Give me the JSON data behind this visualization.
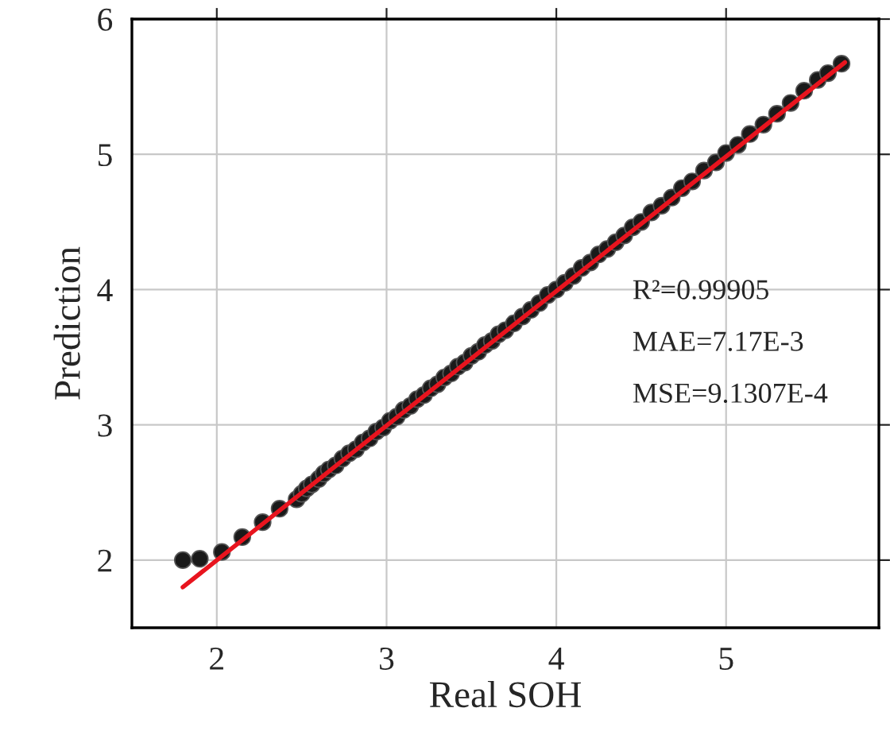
{
  "chart_data": {
    "type": "scatter",
    "xlabel": "Real SOH",
    "ylabel": "Prediction",
    "xlim": [
      1.5,
      5.9
    ],
    "ylim": [
      1.5,
      6
    ],
    "xticks": [
      2,
      3,
      4,
      5
    ],
    "yticks": [
      2,
      3,
      4,
      5,
      6
    ],
    "grid": true,
    "series": [
      {
        "marker": "circle",
        "color": "#1a1a1a",
        "x": [
          1.8,
          1.9,
          2.03,
          2.15,
          2.27,
          2.37,
          2.47,
          2.5,
          2.53,
          2.56,
          2.6,
          2.63,
          2.66,
          2.7,
          2.74,
          2.78,
          2.82,
          2.86,
          2.9,
          2.94,
          2.98,
          3.02,
          3.06,
          3.1,
          3.14,
          3.18,
          3.22,
          3.26,
          3.3,
          3.34,
          3.38,
          3.42,
          3.46,
          3.5,
          3.54,
          3.58,
          3.62,
          3.66,
          3.7,
          3.75,
          3.8,
          3.85,
          3.9,
          3.95,
          4.0,
          4.05,
          4.1,
          4.15,
          4.2,
          4.25,
          4.3,
          4.35,
          4.4,
          4.45,
          4.5,
          4.56,
          4.62,
          4.68,
          4.74,
          4.8,
          4.87,
          4.94,
          5.0,
          5.07,
          5.14,
          5.22,
          5.3,
          5.38,
          5.46,
          5.54,
          5.6,
          5.68
        ],
        "values": [
          2.0,
          2.01,
          2.06,
          2.17,
          2.28,
          2.38,
          2.45,
          2.49,
          2.53,
          2.56,
          2.6,
          2.64,
          2.67,
          2.7,
          2.75,
          2.79,
          2.82,
          2.87,
          2.9,
          2.95,
          2.98,
          3.03,
          3.06,
          3.11,
          3.14,
          3.19,
          3.22,
          3.27,
          3.3,
          3.35,
          3.38,
          3.43,
          3.46,
          3.51,
          3.54,
          3.59,
          3.62,
          3.67,
          3.7,
          3.75,
          3.8,
          3.85,
          3.9,
          3.96,
          4.0,
          4.05,
          4.1,
          4.16,
          4.2,
          4.26,
          4.3,
          4.35,
          4.4,
          4.46,
          4.5,
          4.57,
          4.62,
          4.68,
          4.75,
          4.8,
          4.88,
          4.94,
          5.01,
          5.07,
          5.15,
          5.22,
          5.3,
          5.38,
          5.47,
          5.55,
          5.6,
          5.67
        ]
      },
      {
        "type": "line",
        "marker": "none",
        "color": "#e8141e",
        "x": [
          1.8,
          5.7
        ],
        "values": [
          1.8,
          5.68
        ]
      }
    ],
    "annotations": [
      {
        "text": "R²=0.99905"
      },
      {
        "text": "MAE=7.17E-3"
      },
      {
        "text": "MSE=9.1307E-4"
      }
    ]
  }
}
